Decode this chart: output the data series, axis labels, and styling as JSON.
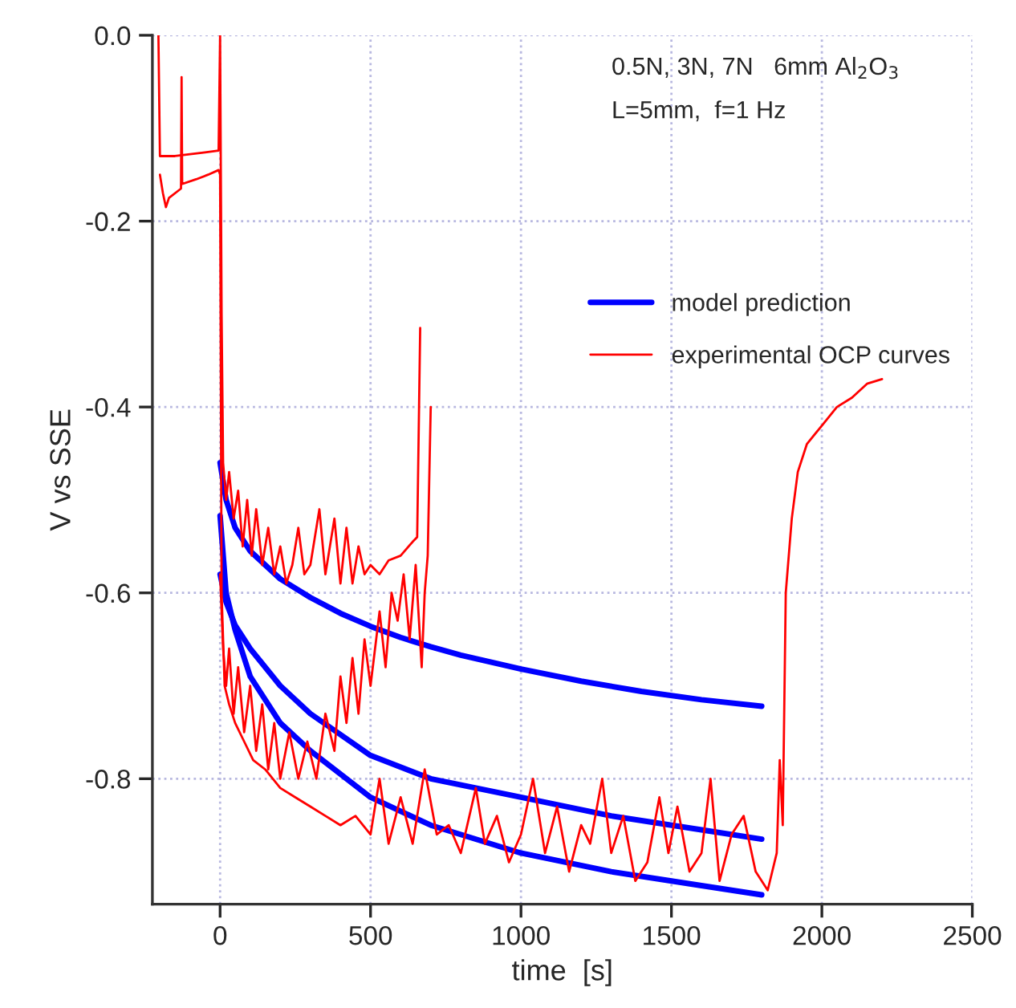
{
  "chart_data": {
    "type": "line",
    "xlabel": "time  [s]",
    "ylabel": "V vs SSE",
    "xlim": [
      -225,
      2500
    ],
    "ylim": [
      -0.935,
      0
    ],
    "xticks": [
      0,
      500,
      1000,
      1500,
      2000,
      2500
    ],
    "yticks": [
      {
        "value": 0,
        "label": "0.0"
      },
      -0.2,
      -0.4,
      -0.6,
      -0.8
    ],
    "grid": true,
    "legend": "right",
    "line_style": "solid",
    "annotations": [
      "0.5N, 3N, 7N   6mm Al$_{2}$O$_{3}$",
      "L=5mm,  f=1 Hz"
    ],
    "series": [
      {
        "name": "model prediction",
        "color": "#0000ff",
        "x": [
          0,
          20,
          50,
          100,
          200,
          300,
          400,
          500,
          600,
          700,
          800,
          1000,
          1200,
          1400,
          1600,
          1800
        ],
        "values": [
          -0.46,
          -0.5,
          -0.53,
          -0.555,
          -0.585,
          -0.605,
          -0.622,
          -0.636,
          -0.648,
          -0.658,
          -0.667,
          -0.682,
          -0.695,
          -0.706,
          -0.715,
          -0.722
        ]
      },
      {
        "color": "#0000ff",
        "x": [
          0,
          20,
          50,
          100,
          200,
          300,
          500,
          700,
          1000,
          1300,
          1600,
          1800
        ],
        "values": [
          -0.58,
          -0.61,
          -0.635,
          -0.66,
          -0.7,
          -0.73,
          -0.775,
          -0.8,
          -0.82,
          -0.84,
          -0.855,
          -0.865
        ]
      },
      {
        "color": "#0000ff",
        "x": [
          0,
          20,
          50,
          100,
          200,
          300,
          500,
          700,
          1000,
          1300,
          1600,
          1800
        ],
        "values": [
          -0.517,
          -0.6,
          -0.64,
          -0.69,
          -0.74,
          -0.77,
          -0.82,
          -0.85,
          -0.88,
          -0.9,
          -0.915,
          -0.925
        ]
      },
      {
        "name": "experimental OCP curves",
        "color": "#ff0000",
        "x": [
          -205,
          -200,
          -150,
          -100,
          -50,
          -5,
          0,
          5,
          10,
          20,
          30,
          45,
          60,
          75,
          90,
          105,
          120,
          140,
          160,
          180,
          200,
          220,
          240,
          260,
          280,
          300,
          330,
          350,
          380,
          400,
          420,
          440,
          460,
          480,
          500,
          530,
          560,
          600,
          640,
          655,
          665
        ],
        "values": [
          0,
          -0.13,
          -0.13,
          -0.128,
          -0.126,
          -0.124,
          0,
          -0.3,
          -0.46,
          -0.5,
          -0.47,
          -0.52,
          -0.49,
          -0.55,
          -0.5,
          -0.56,
          -0.51,
          -0.57,
          -0.53,
          -0.58,
          -0.55,
          -0.59,
          -0.57,
          -0.53,
          -0.58,
          -0.57,
          -0.51,
          -0.58,
          -0.52,
          -0.59,
          -0.53,
          -0.59,
          -0.55,
          -0.58,
          -0.57,
          -0.58,
          -0.565,
          -0.56,
          -0.545,
          -0.54,
          -0.315
        ]
      },
      {
        "color": "#ff0000",
        "x": [
          0,
          10,
          20,
          30,
          45,
          60,
          80,
          100,
          120,
          140,
          160,
          180,
          200,
          230,
          260,
          290,
          320,
          350,
          380,
          400,
          420,
          440,
          460,
          480,
          500,
          530,
          550,
          570,
          590,
          610,
          630,
          650,
          670,
          680,
          690,
          700
        ],
        "values": [
          -0.58,
          -0.66,
          -0.7,
          -0.66,
          -0.73,
          -0.68,
          -0.75,
          -0.7,
          -0.77,
          -0.72,
          -0.79,
          -0.74,
          -0.8,
          -0.75,
          -0.8,
          -0.76,
          -0.8,
          -0.73,
          -0.77,
          -0.69,
          -0.74,
          -0.67,
          -0.73,
          -0.65,
          -0.7,
          -0.62,
          -0.68,
          -0.6,
          -0.63,
          -0.58,
          -0.65,
          -0.57,
          -0.68,
          -0.6,
          -0.56,
          -0.4
        ]
      },
      {
        "color": "#ff0000",
        "x": [
          -200,
          -190,
          -180,
          -170,
          -130,
          -128,
          -126,
          -80,
          -40,
          -5,
          0,
          5,
          15,
          30,
          50,
          80,
          110,
          150,
          200,
          250,
          300,
          350,
          400,
          450,
          500,
          530,
          560,
          600,
          640,
          680,
          720,
          760,
          800,
          850,
          880,
          920,
          960,
          1000,
          1040,
          1080,
          1120,
          1160,
          1200,
          1230,
          1270,
          1300,
          1340,
          1380,
          1420,
          1460,
          1490,
          1520,
          1560,
          1600,
          1630,
          1660,
          1700,
          1740,
          1780,
          1820,
          1850,
          1860,
          1870,
          1880,
          1900,
          1920,
          1950,
          2000,
          2050,
          2100,
          2150,
          2200
        ],
        "values": [
          -0.15,
          -0.17,
          -0.185,
          -0.175,
          -0.165,
          -0.045,
          -0.16,
          -0.155,
          -0.15,
          -0.145,
          -0.15,
          -0.6,
          -0.7,
          -0.72,
          -0.74,
          -0.76,
          -0.78,
          -0.79,
          -0.81,
          -0.82,
          -0.83,
          -0.84,
          -0.85,
          -0.84,
          -0.86,
          -0.8,
          -0.87,
          -0.82,
          -0.87,
          -0.79,
          -0.86,
          -0.85,
          -0.88,
          -0.81,
          -0.87,
          -0.84,
          -0.89,
          -0.86,
          -0.8,
          -0.88,
          -0.83,
          -0.9,
          -0.85,
          -0.87,
          -0.8,
          -0.88,
          -0.84,
          -0.91,
          -0.89,
          -0.82,
          -0.88,
          -0.83,
          -0.9,
          -0.88,
          -0.8,
          -0.91,
          -0.86,
          -0.84,
          -0.9,
          -0.92,
          -0.88,
          -0.78,
          -0.85,
          -0.6,
          -0.52,
          -0.47,
          -0.44,
          -0.42,
          -0.4,
          -0.39,
          -0.375,
          -0.37
        ]
      }
    ]
  }
}
